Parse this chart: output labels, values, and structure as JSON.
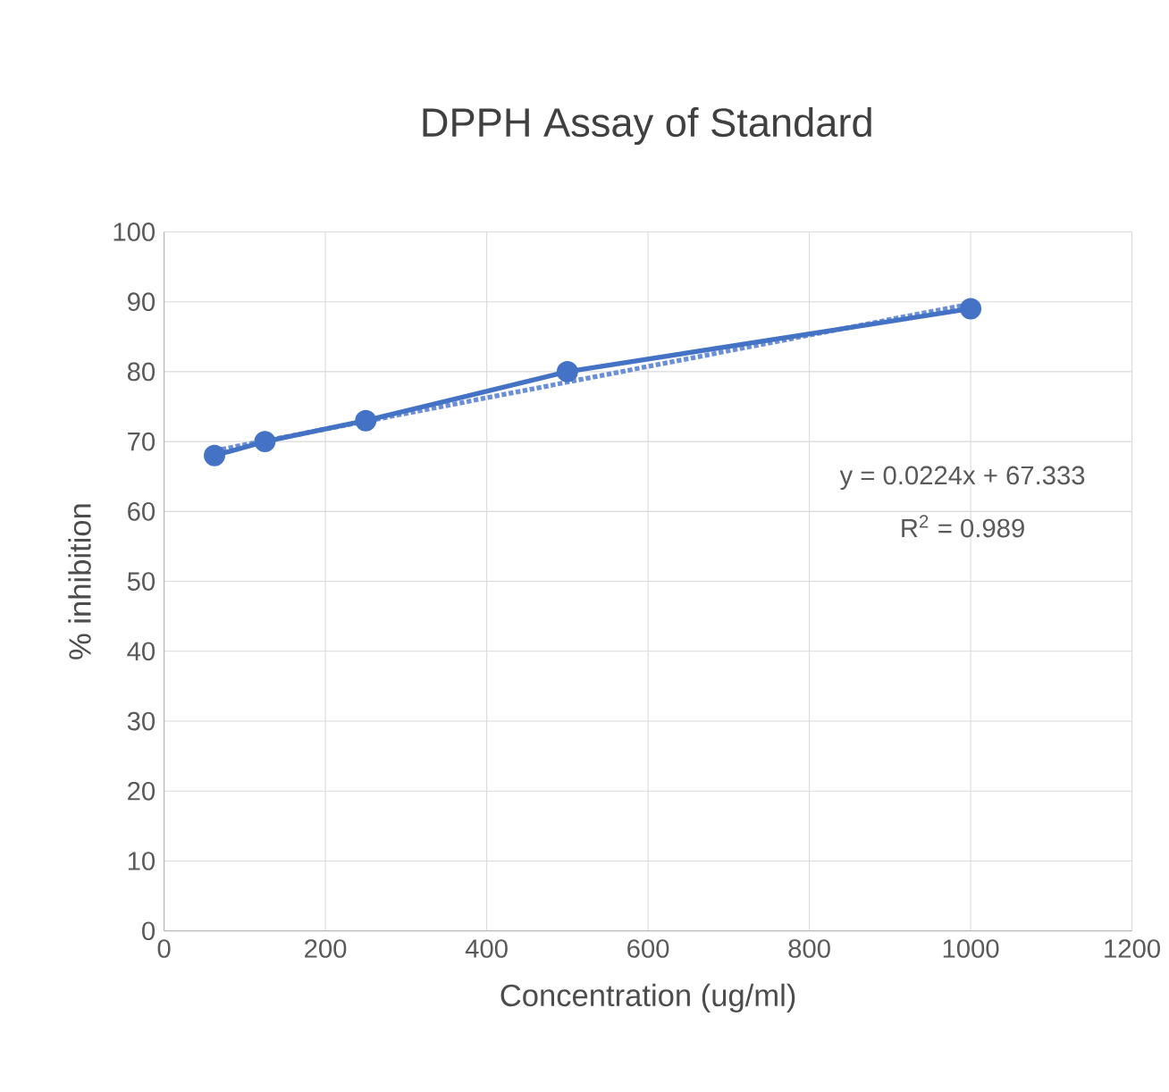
{
  "chart_data": {
    "type": "line",
    "title": "DPPH Assay of Standard",
    "xlabel": "Concentration (ug/ml)",
    "ylabel": "% inhibition",
    "series": [
      {
        "color": "#4472c4",
        "x": [
          62.5,
          125,
          250,
          500,
          1000
        ],
        "values": [
          68,
          70,
          73,
          80,
          89
        ],
        "marker": "circle",
        "line_style": "solid"
      },
      {
        "color": "#6b8fd6",
        "x": [
          62.5,
          1000
        ],
        "values": [
          68.7,
          89.7
        ],
        "marker": "none",
        "line_style": "dotted"
      }
    ],
    "xlim": [
      0,
      1200
    ],
    "xticks": [
      0,
      200,
      400,
      600,
      800,
      1000,
      1200
    ],
    "ylim": [
      0,
      100
    ],
    "yticks": [
      0,
      10,
      20,
      30,
      40,
      50,
      60,
      70,
      80,
      90,
      100
    ],
    "grid": true,
    "annotations": [
      "y = 0.0224x + 67.333",
      "R$^{2}$ = 0.989"
    ]
  }
}
